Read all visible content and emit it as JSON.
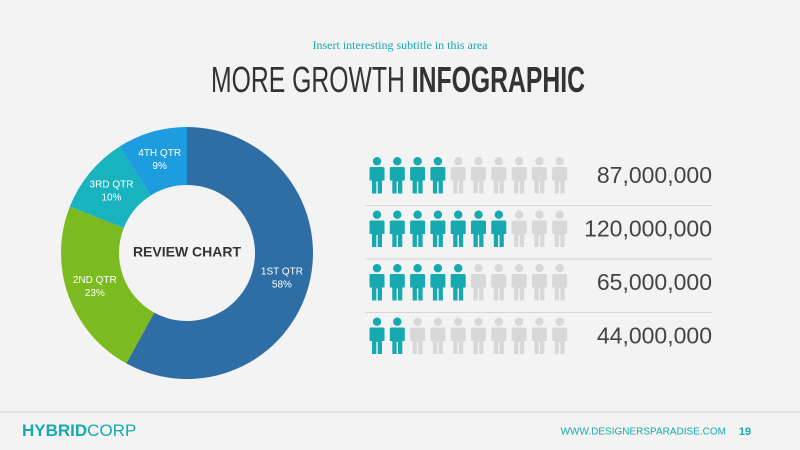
{
  "header": {
    "subtitle": "Insert interesting subtitle in this area",
    "title_light": "MORE GROWTH",
    "title_bold": "INFOGRAPHIC"
  },
  "chart_data": [
    {
      "type": "pie",
      "donut": true,
      "center_label": "REVIEW CHART",
      "categories": [
        "1ST QTR",
        "2ND QTR",
        "3RD QTR",
        "4TH QTR"
      ],
      "values": [
        58,
        23,
        10,
        9
      ],
      "value_labels": [
        "58%",
        "23%",
        "10%",
        "9%"
      ],
      "colors": [
        "#2e6ea5",
        "#7cbb1f",
        "#18b3bf",
        "#1d9de0"
      ]
    },
    {
      "type": "pictograph",
      "values": [
        87000000,
        120000000,
        65000000,
        44000000
      ],
      "value_labels": [
        "87,000,000",
        "120,000,000",
        "65,000,000",
        "44,000,000"
      ],
      "icons": [
        4,
        7,
        5,
        2
      ],
      "icons_total": 10,
      "color": "#17a9b0",
      "empty_color": "#d8d8d8"
    }
  ],
  "footer": {
    "brand_bold": "HYBRID",
    "brand_light": "CORP",
    "website": "WWW.DESIGNERSPARADISE.COM",
    "page": 19
  }
}
